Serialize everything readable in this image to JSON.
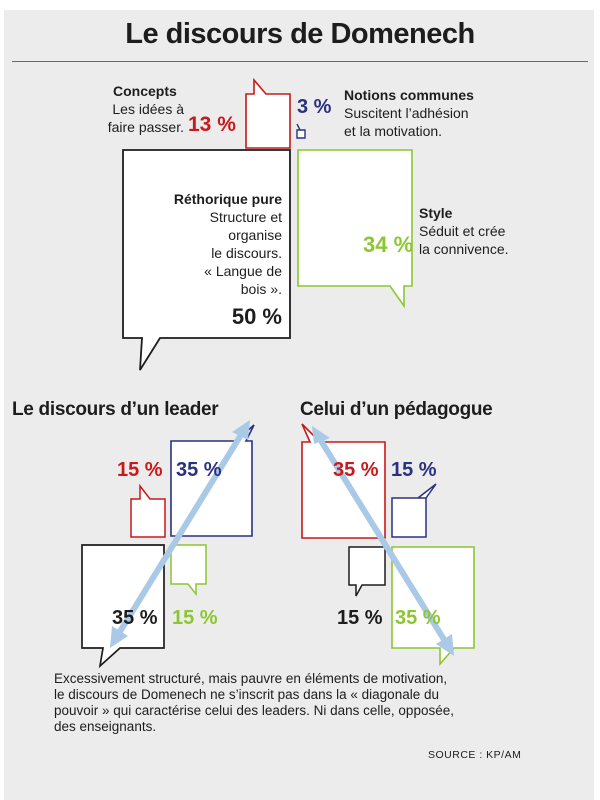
{
  "title": "Le discours de Domenech",
  "top": {
    "concepts": {
      "heading": "Concepts",
      "text1": "Les idées à",
      "text2": "faire passer.",
      "pct": "13 %"
    },
    "notions": {
      "heading": "Notions communes",
      "text1": "Suscitent l’adhésion",
      "text2": "et la motivation.",
      "pct": "3 %"
    },
    "rhetorique": {
      "heading": "Réthorique pure",
      "lines": [
        "Structure et",
        "organise",
        "le discours.",
        "« Langue de",
        "bois »."
      ],
      "pct": "50 %"
    },
    "style": {
      "heading": "Style",
      "text1": "Séduit et crée",
      "text2": "la connivence.",
      "pct": "34 %"
    }
  },
  "leader": {
    "heading": "Le discours d’un leader",
    "concepts": "15 %",
    "notions": "35 %",
    "rhetorique": "35 %",
    "style": "15 %"
  },
  "pedagogue": {
    "heading": "Celui d’un pédagogue",
    "concepts": "35 %",
    "notions": "15 %",
    "rhetorique": "15 %",
    "style": "35 %"
  },
  "caption": [
    "Excessivement structuré, mais pauvre en éléments de motivation,",
    "le discours de Domenech ne s’inscrit pas dans la « diagonale du",
    "pouvoir » qui caractérise celui des leaders. Ni dans celle, opposée,",
    "des enseignants."
  ],
  "source": "SOURCE : KP/AM",
  "colors": {
    "concepts": "#c8191b",
    "notions": "#2a3180",
    "rhetorique": "#1d1d1d",
    "style": "#8cc630",
    "arrow": "#a9c9e6"
  }
}
